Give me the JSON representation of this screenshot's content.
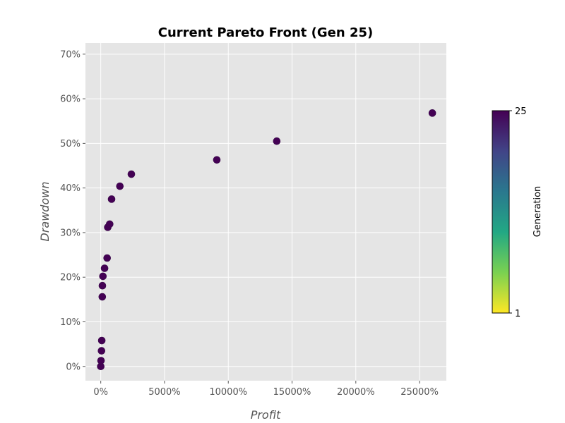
{
  "chart_data": {
    "type": "scatter",
    "title": "Current Pareto Front (Gen 25)",
    "xlabel": "Profit",
    "ylabel": "Drawdown",
    "x_unit": "%",
    "y_unit": "%",
    "xlim": [
      -1200,
      27100
    ],
    "ylim": [
      -3.2,
      72.5
    ],
    "x_ticks": [
      0,
      5000,
      10000,
      15000,
      20000,
      25000
    ],
    "y_ticks": [
      0,
      10,
      20,
      30,
      40,
      50,
      60,
      70
    ],
    "grid": true,
    "point_color": "#440154",
    "points": [
      {
        "x": 0,
        "y": 0
      },
      {
        "x": 20,
        "y": 1.3
      },
      {
        "x": 60,
        "y": 3.5
      },
      {
        "x": 80,
        "y": 5.8
      },
      {
        "x": 120,
        "y": 15.6
      },
      {
        "x": 130,
        "y": 18.1
      },
      {
        "x": 170,
        "y": 20.2
      },
      {
        "x": 300,
        "y": 22.0
      },
      {
        "x": 500,
        "y": 24.3
      },
      {
        "x": 550,
        "y": 31.2
      },
      {
        "x": 700,
        "y": 31.9
      },
      {
        "x": 850,
        "y": 37.5
      },
      {
        "x": 1500,
        "y": 40.4
      },
      {
        "x": 2400,
        "y": 43.1
      },
      {
        "x": 9100,
        "y": 46.3
      },
      {
        "x": 13800,
        "y": 50.5
      },
      {
        "x": 26000,
        "y": 56.8
      }
    ],
    "colorbar": {
      "label": "Generation",
      "min": 1,
      "max": 25,
      "min_label": "1",
      "max_label": "25",
      "colormap": "viridis_r",
      "stops": [
        "#fde725",
        "#7ad151",
        "#22a884",
        "#2a788e",
        "#414487",
        "#440154"
      ]
    }
  }
}
